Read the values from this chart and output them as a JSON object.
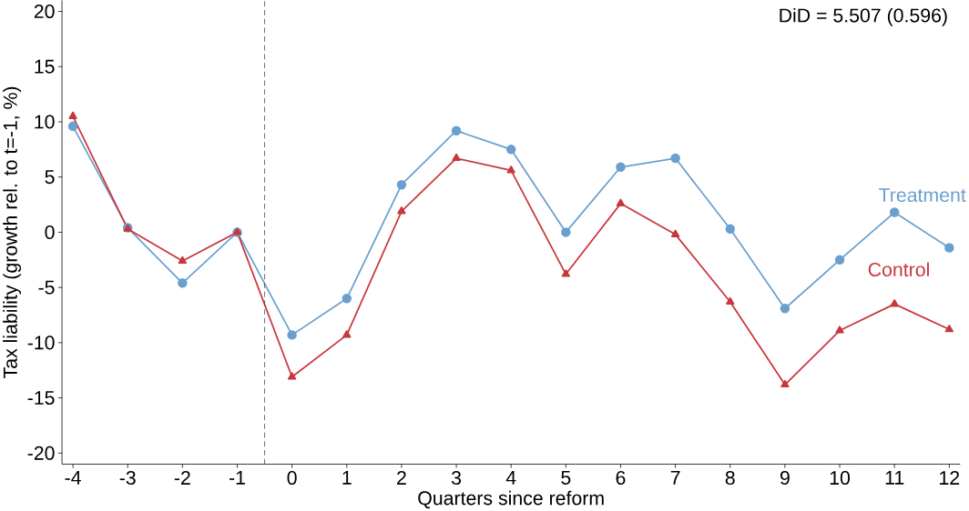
{
  "chart_data": {
    "type": "line",
    "xlabel": "Quarters since reform",
    "ylabel": "Tax liability (growth rel. to t=-1, %)",
    "x": [
      -4,
      -3,
      -2,
      -1,
      0,
      1,
      2,
      3,
      4,
      5,
      6,
      7,
      8,
      9,
      10,
      11,
      12
    ],
    "series": [
      {
        "name": "Treatment",
        "color": "#6a9fcf",
        "marker": "circle",
        "values": [
          9.6,
          0.4,
          -4.6,
          0,
          -9.3,
          -6.0,
          4.3,
          9.2,
          7.5,
          0,
          5.9,
          6.7,
          0.3,
          -6.9,
          -2.5,
          1.8,
          -1.4
        ]
      },
      {
        "name": "Control",
        "color": "#c8373c",
        "marker": "triangle",
        "values": [
          10.5,
          0.3,
          -2.6,
          0,
          -13.1,
          -9.3,
          1.9,
          6.7,
          5.6,
          -3.8,
          2.6,
          -0.2,
          -6.3,
          -13.8,
          -8.9,
          -6.5,
          -8.8
        ]
      }
    ],
    "xlim": [
      -4.2,
      12.2
    ],
    "ylim": [
      -21,
      21
    ],
    "xticks": [
      -4,
      -3,
      -2,
      -1,
      0,
      1,
      2,
      3,
      4,
      5,
      6,
      7,
      8,
      9,
      10,
      11,
      12
    ],
    "yticks": [
      -20,
      -15,
      -10,
      -5,
      0,
      5,
      10,
      15,
      20
    ],
    "ref_lines": [
      {
        "axis": "x",
        "value": -0.5,
        "color": "#444444",
        "line_style": "dashed"
      }
    ],
    "annotations": [
      "DiD = 5.507 (0.596)"
    ],
    "grid": false,
    "line_style": "solid"
  }
}
